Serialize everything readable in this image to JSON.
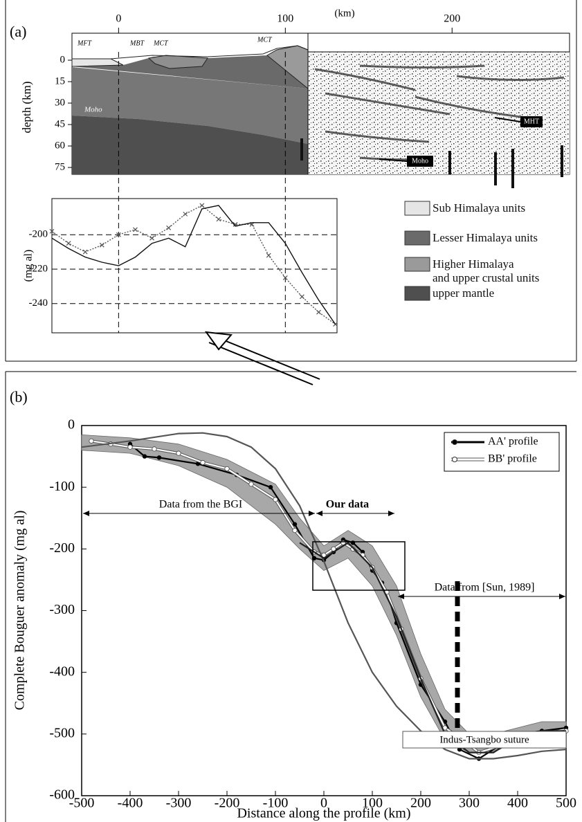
{
  "panel_labels": [
    "(a)",
    "(b)"
  ],
  "cross_section": {
    "xlabel": "(km)",
    "xticks": [
      0,
      100,
      200
    ],
    "ylabel": "depth (km)",
    "yticks": [
      0,
      15,
      30,
      45,
      60,
      75
    ],
    "fault_labels": [
      "MFT",
      "MBT",
      "MCT",
      "MCT"
    ],
    "moho_labels": [
      "Moho",
      "Moho"
    ],
    "mht_label": "MHT",
    "legend": [
      {
        "name": "Sub Himalaya units",
        "color": "#e6e6e6"
      },
      {
        "name": "Lesser Himalaya units",
        "color": "#6a6a6a"
      },
      {
        "name": "Higher Himalaya\nand upper crustal units",
        "color": "#9a9a9a"
      },
      {
        "name": "upper mantle",
        "color": "#4f4f4f"
      }
    ]
  },
  "chart_data": [
    {
      "type": "line",
      "ylabel": "(mg al)",
      "xlim": [
        -40,
        131
      ],
      "ylim": [
        -257,
        -179
      ],
      "yticks": [
        -200,
        -220,
        -240
      ],
      "grid": true,
      "series": [
        {
          "color": "#555555",
          "marker": "cross",
          "x": [
            -40,
            -30,
            -20,
            -10,
            0,
            10,
            20,
            30,
            40,
            50,
            60,
            70,
            80,
            90,
            100,
            110,
            120,
            130
          ],
          "values": [
            -198,
            -205,
            -210,
            -206,
            -200,
            -197,
            -202,
            -196,
            -188,
            -183,
            -191,
            -194,
            -194,
            -212,
            -225,
            -236,
            -245,
            -252
          ]
        },
        {
          "color": "#111111",
          "x": [
            -40,
            -30,
            -20,
            -10,
            0,
            10,
            20,
            30,
            40,
            50,
            60,
            70,
            80,
            90,
            100,
            110,
            120,
            130
          ],
          "values": [
            -202,
            -208,
            -213,
            -216,
            -218,
            -213,
            -205,
            -202,
            -207,
            -185,
            -183,
            -195,
            -193,
            -193,
            -205,
            -222,
            -238,
            -252
          ]
        }
      ]
    },
    {
      "type": "line",
      "xlabel": "Distance along the profile (km)",
      "ylabel": "Complete Bouguer anomaly (mg al)",
      "xlim": [
        -500,
        500
      ],
      "ylim": [
        -600,
        0
      ],
      "xticks": [
        -500,
        -400,
        -300,
        -200,
        -100,
        0,
        100,
        200,
        300,
        400,
        500
      ],
      "yticks": [
        0,
        -100,
        -200,
        -300,
        -400,
        -500,
        -600
      ],
      "legend": "upper right",
      "annotations": [
        "Data from the BGI",
        "Our data",
        "Data from [Sun, 1989]",
        "Indus-Tsangbo suture"
      ],
      "band": {
        "color": "#a8a8a8",
        "x": [
          -500,
          -400,
          -300,
          -200,
          -100,
          -50,
          0,
          50,
          100,
          150,
          200,
          250,
          300,
          350,
          400,
          450,
          500
        ],
        "upper": [
          -15,
          -20,
          -30,
          -55,
          -95,
          -150,
          -195,
          -170,
          -195,
          -260,
          -370,
          -460,
          -500,
          -500,
          -490,
          -480,
          -480
        ],
        "lower": [
          -40,
          -45,
          -65,
          -100,
          -160,
          -200,
          -235,
          -215,
          -260,
          -340,
          -440,
          -510,
          -530,
          -530,
          -510,
          -500,
          -490
        ]
      },
      "series": [
        {
          "name": "AA' profile",
          "color": "#000000",
          "marker": "dot",
          "x": [
            -400,
            -370,
            -340,
            -260,
            -180,
            -110,
            -60,
            -20,
            0,
            20,
            40,
            60,
            80,
            100,
            120,
            130,
            150,
            200,
            250,
            280,
            320,
            360,
            400,
            450,
            500
          ],
          "values": [
            -30,
            -50,
            -52,
            -62,
            -80,
            -100,
            -160,
            -215,
            -218,
            -205,
            -185,
            -190,
            -205,
            -235,
            -255,
            -270,
            -320,
            -420,
            -480,
            -525,
            -540,
            -520,
            -500,
            -495,
            -490
          ]
        },
        {
          "name": "BB' profile",
          "color": "#ffffff",
          "marker": "circle",
          "x": [
            -480,
            -440,
            -400,
            -350,
            -300,
            -250,
            -200,
            -150,
            -100,
            -60,
            -20,
            0,
            20,
            40,
            60,
            80,
            100,
            130,
            160,
            200,
            250,
            280,
            320,
            360,
            400,
            450,
            500
          ],
          "values": [
            -25,
            -30,
            -35,
            -38,
            -45,
            -60,
            -70,
            -95,
            -120,
            -170,
            -205,
            -210,
            -200,
            -190,
            -200,
            -210,
            -230,
            -270,
            -330,
            -410,
            -490,
            -505,
            -530,
            -520,
            -500,
            -500,
            -495
          ]
        },
        {
          "color": "#555555",
          "x": [
            -500,
            -400,
            -300,
            -250,
            -200,
            -150,
            -100,
            -50,
            0,
            50,
            100,
            150,
            200,
            250,
            300,
            350,
            400,
            450,
            500
          ],
          "values": [
            -35,
            -25,
            -13,
            -12,
            -18,
            -35,
            -70,
            -130,
            -220,
            -320,
            -400,
            -455,
            -495,
            -525,
            -540,
            -540,
            -535,
            -528,
            -525
          ]
        },
        {
          "color": "#222222",
          "x": [
            -50,
            0,
            50,
            100,
            150,
            200,
            250,
            300,
            350,
            400,
            450,
            500
          ],
          "values": [
            -190,
            -215,
            -190,
            -230,
            -310,
            -410,
            -500,
            -530,
            -530,
            -505,
            -495,
            -495
          ]
        }
      ]
    }
  ]
}
